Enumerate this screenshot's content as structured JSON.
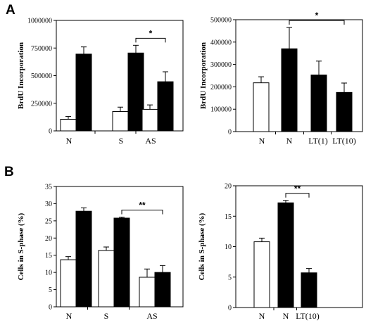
{
  "panels": {
    "a": "A",
    "b": "B"
  },
  "chart_data": [
    {
      "type": "bar",
      "ylabel": "BrdU Incorporation",
      "ylim": [
        0,
        1000000
      ],
      "yticks": [
        0,
        250000,
        500000,
        750000,
        1000000
      ],
      "ytick_labels": [
        "0",
        "250000",
        "500000",
        "750000",
        "1000000"
      ],
      "categories": [
        "N",
        "S",
        "AS"
      ],
      "bars": [
        {
          "cat": 0,
          "fill": "white",
          "value": 105000,
          "err": 25000
        },
        {
          "cat": 0,
          "fill": "black",
          "value": 695000,
          "err": 65000
        },
        {
          "cat": 1,
          "fill": "white",
          "value": 175000,
          "err": 40000
        },
        {
          "cat": 1,
          "fill": "black",
          "value": 705000,
          "err": 70000
        },
        {
          "cat": 2,
          "fill": "white",
          "value": 195000,
          "err": 40000
        },
        {
          "cat": 2,
          "fill": "black",
          "value": 445000,
          "err": 90000
        }
      ],
      "significance": [
        {
          "from_bar": 3,
          "to_bar": 5,
          "label": "*"
        }
      ]
    },
    {
      "type": "bar",
      "ylabel": "BrdU Incorporation",
      "ylim": [
        0,
        500000
      ],
      "yticks": [
        0,
        100000,
        200000,
        300000,
        400000,
        500000
      ],
      "ytick_labels": [
        "0",
        "100000",
        "200000",
        "300000",
        "400000",
        "500000"
      ],
      "categories": [
        "N",
        "N",
        "LT(1)",
        "LT(10)"
      ],
      "bars": [
        {
          "cat": 0,
          "fill": "white",
          "value": 218000,
          "err": 27000
        },
        {
          "cat": 1,
          "fill": "black",
          "value": 370000,
          "err": 95000
        },
        {
          "cat": 2,
          "fill": "black",
          "value": 253000,
          "err": 62000
        },
        {
          "cat": 3,
          "fill": "black",
          "value": 175000,
          "err": 42000
        }
      ],
      "significance": [
        {
          "from_bar": 1,
          "to_bar": 3,
          "label": "*"
        }
      ]
    },
    {
      "type": "bar",
      "ylabel": "Cells in S-phase (%)",
      "ylim": [
        0,
        35
      ],
      "yticks": [
        0,
        5,
        10,
        15,
        20,
        25,
        30,
        35
      ],
      "ytick_labels": [
        "0",
        "5",
        "10",
        "15",
        "20",
        "25",
        "30",
        "35"
      ],
      "categories": [
        "N",
        "S",
        "AS"
      ],
      "bars": [
        {
          "cat": 0,
          "fill": "white",
          "value": 13.7,
          "err": 0.9
        },
        {
          "cat": 0,
          "fill": "black",
          "value": 27.8,
          "err": 1.0
        },
        {
          "cat": 1,
          "fill": "white",
          "value": 16.4,
          "err": 1.0
        },
        {
          "cat": 1,
          "fill": "black",
          "value": 25.8,
          "err": 0.3
        },
        {
          "cat": 2,
          "fill": "white",
          "value": 8.6,
          "err": 2.4
        },
        {
          "cat": 2,
          "fill": "black",
          "value": 10.0,
          "err": 2.0
        }
      ],
      "significance": [
        {
          "from_bar": 3,
          "to_bar": 5,
          "label": "**"
        }
      ]
    },
    {
      "type": "bar",
      "ylabel": "Cells in S-phase (%)",
      "ylim": [
        0,
        20
      ],
      "yticks": [
        0,
        5,
        10,
        15,
        20
      ],
      "ytick_labels": [
        "0",
        "5",
        "10",
        "15",
        "20"
      ],
      "categories": [
        "N",
        "N",
        "LT(10)"
      ],
      "bars": [
        {
          "cat": 0,
          "fill": "white",
          "value": 10.8,
          "err": 0.6
        },
        {
          "cat": 1,
          "fill": "black",
          "value": 17.2,
          "err": 0.4
        },
        {
          "cat": 2,
          "fill": "black",
          "value": 5.7,
          "err": 0.7
        }
      ],
      "significance": [
        {
          "from_bar": 1,
          "to_bar": 2,
          "label": "**"
        }
      ]
    }
  ]
}
